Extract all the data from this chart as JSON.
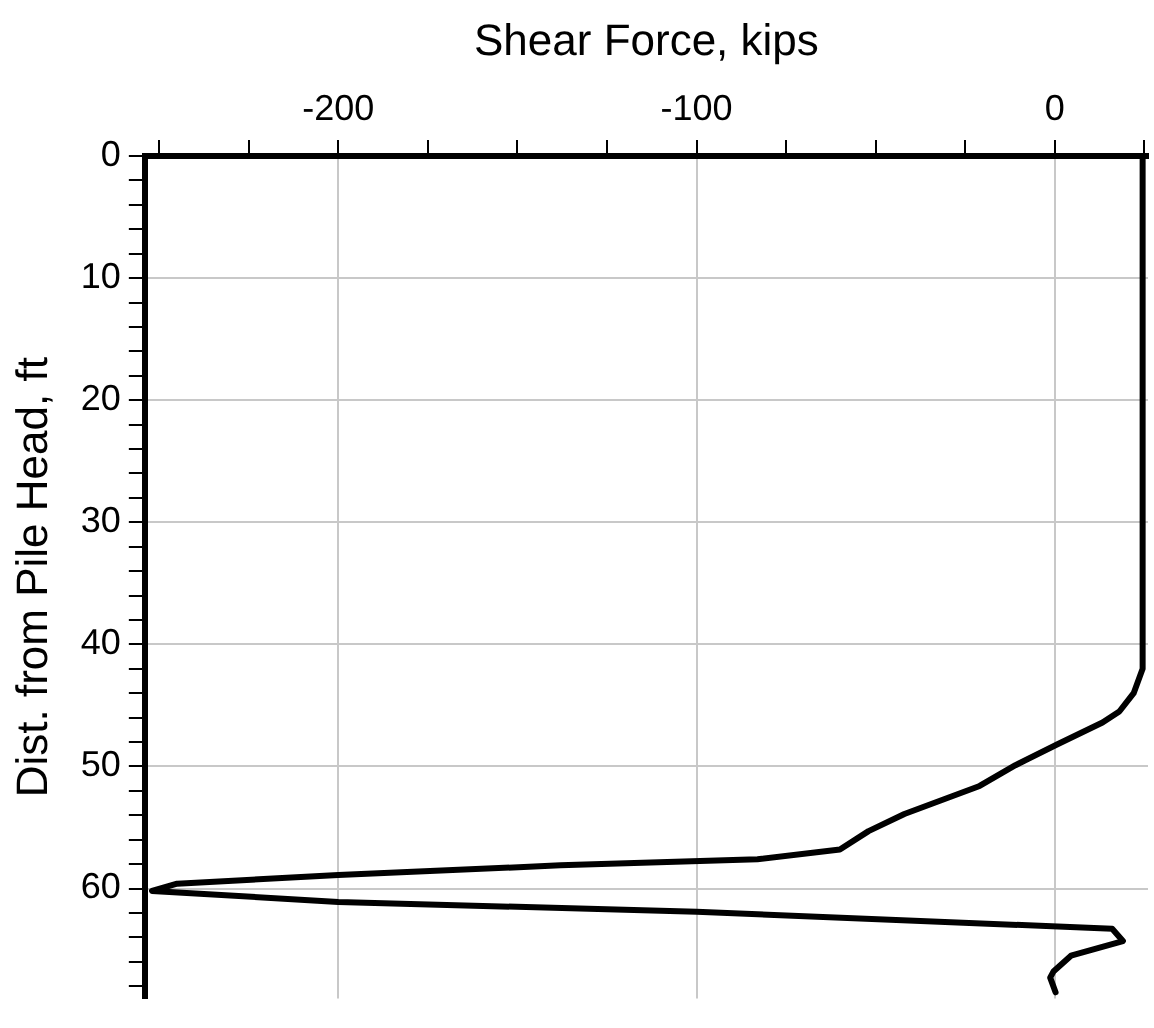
{
  "chart_data": {
    "type": "line",
    "xlabel": "Shear Force, kips",
    "ylabel": "Dist. from Pile Head, ft",
    "xlim": [
      -254,
      26
    ],
    "ylim": [
      69,
      0
    ],
    "xticks": [
      {
        "value": -250,
        "label": null
      },
      {
        "value": -225,
        "label": null
      },
      -200,
      {
        "value": -175,
        "label": null
      },
      {
        "value": -150,
        "label": null
      },
      {
        "value": -125,
        "label": null
      },
      -100,
      {
        "value": -75,
        "label": null
      },
      {
        "value": -50,
        "label": null
      },
      {
        "value": -25,
        "label": null
      },
      0,
      {
        "value": 25,
        "label": null
      }
    ],
    "yticks": [
      0,
      {
        "value": 2,
        "label": null
      },
      {
        "value": 4,
        "label": null
      },
      {
        "value": 6,
        "label": null
      },
      {
        "value": 8,
        "label": null
      },
      10,
      {
        "value": 12,
        "label": null
      },
      {
        "value": 14,
        "label": null
      },
      {
        "value": 16,
        "label": null
      },
      {
        "value": 18,
        "label": null
      },
      20,
      {
        "value": 22,
        "label": null
      },
      {
        "value": 24,
        "label": null
      },
      {
        "value": 26,
        "label": null
      },
      {
        "value": 28,
        "label": null
      },
      30,
      {
        "value": 32,
        "label": null
      },
      {
        "value": 34,
        "label": null
      },
      {
        "value": 36,
        "label": null
      },
      {
        "value": 38,
        "label": null
      },
      40,
      {
        "value": 42,
        "label": null
      },
      {
        "value": 44,
        "label": null
      },
      {
        "value": 46,
        "label": null
      },
      {
        "value": 48,
        "label": null
      },
      50,
      {
        "value": 52,
        "label": null
      },
      {
        "value": 54,
        "label": null
      },
      {
        "value": 56,
        "label": null
      },
      {
        "value": 58,
        "label": null
      },
      60,
      {
        "value": 62,
        "label": null
      },
      {
        "value": 64,
        "label": null
      },
      {
        "value": 66,
        "label": null
      },
      {
        "value": 68,
        "label": null
      }
    ],
    "grid": true,
    "legend": false,
    "marker": "none",
    "line_style": "solid",
    "series": [
      {
        "color": "#000000",
        "x": [
          24.5,
          24.5,
          22,
          18,
          13.3,
          0.6,
          -11,
          -21,
          -42,
          -52,
          -60,
          -83,
          -138,
          -200,
          -245,
          -252,
          -200,
          -100,
          16,
          19,
          4.5,
          -0.4,
          -1.3,
          0.2
        ],
        "values": [
          0,
          42,
          44,
          45.5,
          46.4,
          48.2,
          49.9,
          51.6,
          53.9,
          55.3,
          56.8,
          57.6,
          58.1,
          58.9,
          59.6,
          60.2,
          61.1,
          61.9,
          63.3,
          64.3,
          65.5,
          66.8,
          67.3,
          68.5
        ]
      }
    ]
  }
}
